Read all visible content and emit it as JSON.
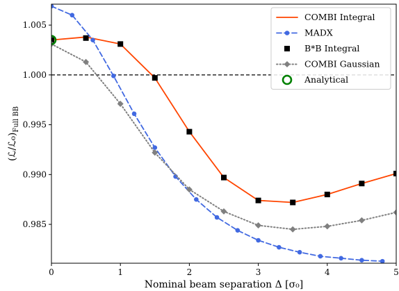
{
  "chart_data": {
    "type": "line",
    "xlabel": "Nominal beam separation Δ [σ₀]",
    "ylabel": "(ℒ/ℒ₀)",
    "ylabel_sub": "Full BB",
    "xlim": [
      0,
      5
    ],
    "ylim": [
      0.9811,
      1.0071
    ],
    "xticks": [
      0,
      1,
      2,
      3,
      4,
      5
    ],
    "yticks": [
      0.985,
      0.99,
      0.995,
      1.0,
      1.005
    ],
    "xtick_labels": [
      "0",
      "1",
      "2",
      "3",
      "4",
      "5"
    ],
    "ytick_labels": [
      "0.985",
      "0.990",
      "0.995",
      "1.000",
      "1.005"
    ],
    "reference_line": 1.0,
    "legend_position": "top-right",
    "grid": false,
    "series": [
      {
        "name": "COMBI Integral",
        "color": "#ff4500",
        "style": "solid",
        "marker": "none",
        "x": [
          0,
          0.5,
          1.0,
          1.5,
          2.0,
          2.5,
          3.0,
          3.5,
          4.0,
          4.5,
          5.0
        ],
        "y": [
          1.0035,
          1.0038,
          1.0031,
          0.9997,
          0.9943,
          0.9897,
          0.9874,
          0.9872,
          0.988,
          0.9891,
          0.9901
        ]
      },
      {
        "name": "MADX",
        "color": "#4169e1",
        "style": "dashed",
        "marker": "circle",
        "x": [
          0,
          0.3,
          0.6,
          0.9,
          1.2,
          1.5,
          1.8,
          2.1,
          2.4,
          2.7,
          3.0,
          3.3,
          3.6,
          3.9,
          4.2,
          4.5,
          4.8
        ],
        "y": [
          1.0069,
          1.006,
          1.0035,
          0.9999,
          0.9961,
          0.9927,
          0.9898,
          0.9875,
          0.9857,
          0.9844,
          0.9834,
          0.9827,
          0.9822,
          0.9818,
          0.9816,
          0.9814,
          0.9813
        ]
      },
      {
        "name": "B*B Integral",
        "color": "#000000",
        "style": "none",
        "marker": "square",
        "x": [
          0,
          0.5,
          1.0,
          1.5,
          2.0,
          2.5,
          3.0,
          3.5,
          4.0,
          4.5,
          5.0
        ],
        "y": [
          1.0035,
          1.0037,
          1.0031,
          0.9997,
          0.9943,
          0.9897,
          0.9874,
          0.9872,
          0.988,
          0.9891,
          0.9901
        ]
      },
      {
        "name": "COMBI Gaussian",
        "color": "#808080",
        "style": "dotted",
        "marker": "diamond",
        "x": [
          0,
          0.5,
          1.0,
          1.5,
          2.0,
          2.5,
          3.0,
          3.5,
          4.0,
          4.5,
          5.0
        ],
        "y": [
          1.0031,
          1.0013,
          0.9971,
          0.9922,
          0.9885,
          0.9863,
          0.9849,
          0.9845,
          0.9848,
          0.9854,
          0.9862
        ]
      },
      {
        "name": "Analytical",
        "color": "#008000",
        "style": "none",
        "marker": "open-circle",
        "x": [
          0
        ],
        "y": [
          1.0035
        ]
      }
    ]
  }
}
